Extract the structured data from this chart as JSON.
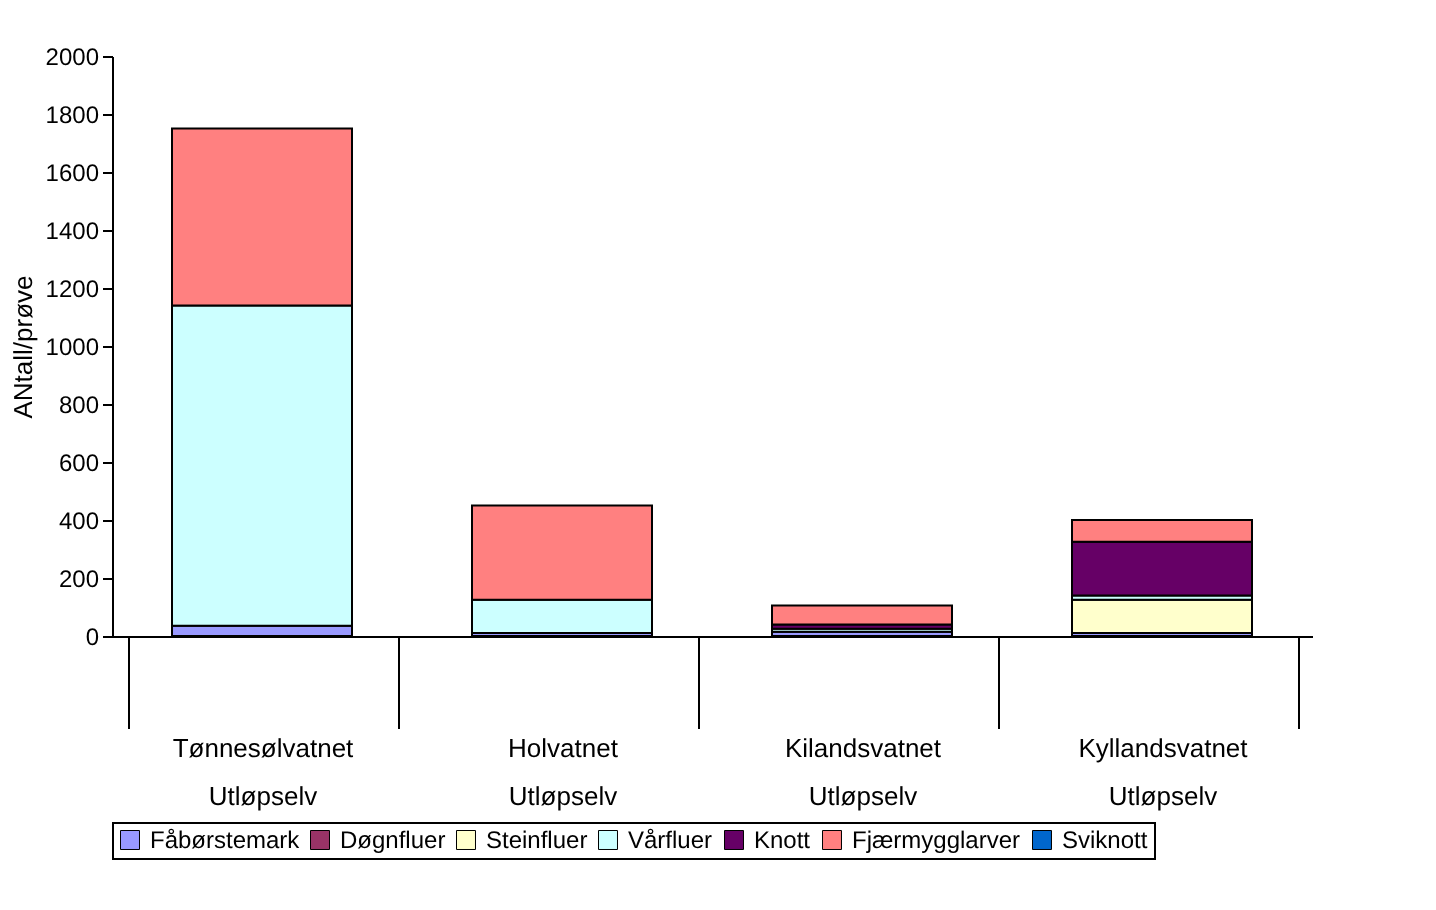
{
  "chart_data": {
    "type": "bar",
    "stacked": true,
    "ylabel": "ANtall/prøve",
    "categories": [
      "Tønnesølvatnet\nUtløpselv",
      "Holvatnet\nUtløpselv",
      "Kilandsvatnet\nUtløpselv",
      "Kyllandsvatnet\nUtløpselv"
    ],
    "series": [
      {
        "name": "Fåbørstemark",
        "color": "#9999ff",
        "values": [
          35,
          10,
          15,
          10
        ]
      },
      {
        "name": "Døgnfluer",
        "color": "#993366",
        "values": [
          0,
          0,
          0,
          0
        ]
      },
      {
        "name": "Steinfluer",
        "color": "#ffffcc",
        "values": [
          0,
          0,
          0,
          115
        ]
      },
      {
        "name": "Vårfluer",
        "color": "#ccffff",
        "values": [
          1105,
          115,
          10,
          15
        ]
      },
      {
        "name": "Knott",
        "color": "#660066",
        "values": [
          0,
          0,
          15,
          185
        ]
      },
      {
        "name": "Fjærmygglarver",
        "color": "#ff8080",
        "values": [
          610,
          325,
          65,
          75
        ]
      },
      {
        "name": "Sviknott",
        "color": "#0066cc",
        "values": [
          0,
          0,
          0,
          0
        ]
      }
    ],
    "ylim": [
      0,
      2000
    ],
    "yticks": [
      0,
      200,
      400,
      600,
      800,
      1000,
      1200,
      1400,
      1600,
      1800,
      2000
    ],
    "grid": false,
    "legend": "bottom"
  }
}
